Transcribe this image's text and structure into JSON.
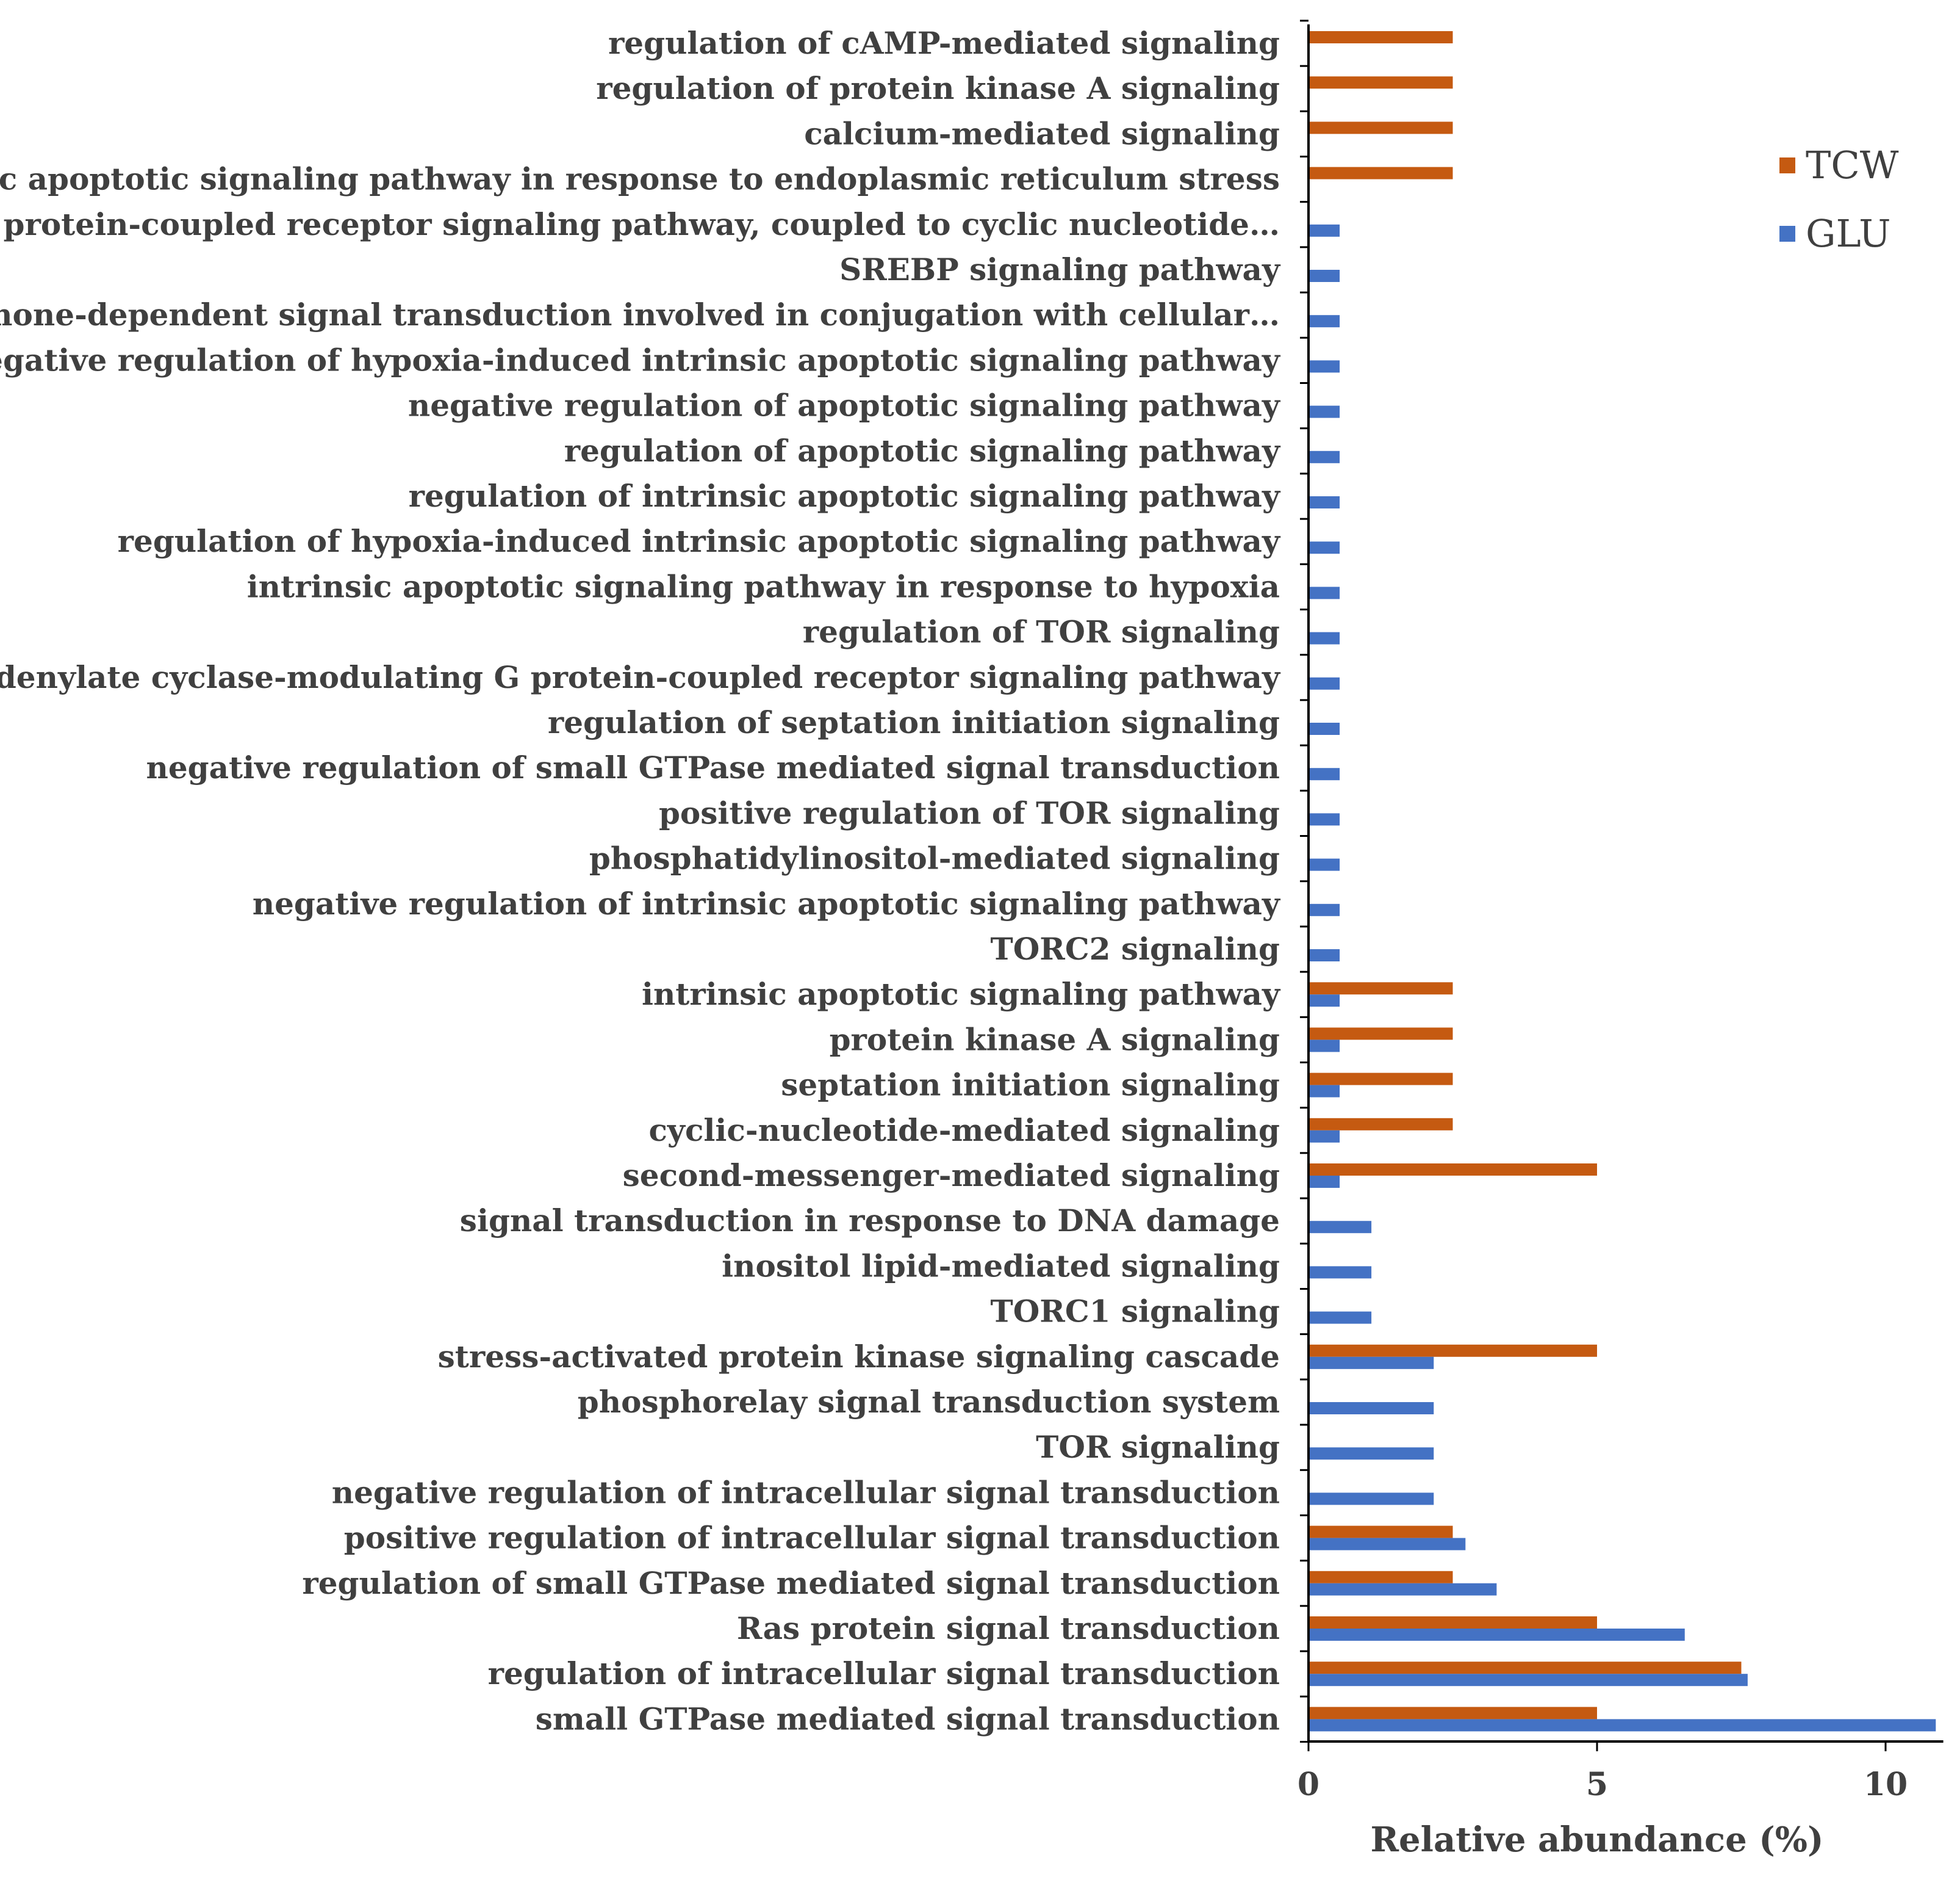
{
  "chart_data": {
    "type": "bar",
    "orientation": "horizontal",
    "title": "",
    "xlabel": "Relative abundance (%)",
    "ylabel": "",
    "xlim": [
      0,
      11
    ],
    "xticks": [
      0,
      5,
      10
    ],
    "grid": false,
    "legend_position": "top-right",
    "categories": [
      "regulation of cAMP-mediated signaling",
      "regulation of protein kinase A signaling",
      "calcium-mediated signaling",
      "intrinsic apoptotic signaling pathway in response to endoplasmic reticulum stress",
      "G protein-coupled receptor signaling pathway, coupled to cyclic nucleotide…",
      "SREBP signaling pathway",
      "pheromone-dependent signal transduction involved in conjugation with cellular…",
      "negative regulation of hypoxia-induced intrinsic apoptotic signaling pathway",
      "negative regulation of apoptotic signaling pathway",
      "regulation of apoptotic signaling pathway",
      "regulation of intrinsic apoptotic signaling pathway",
      "regulation of hypoxia-induced intrinsic apoptotic signaling pathway",
      "intrinsic apoptotic signaling pathway in response to hypoxia",
      "regulation of TOR signaling",
      "adenylate cyclase-modulating G protein-coupled receptor signaling pathway",
      "regulation of septation initiation signaling",
      "negative regulation of small GTPase mediated signal transduction",
      "positive regulation of TOR signaling",
      "phosphatidylinositol-mediated signaling",
      "negative regulation of intrinsic apoptotic signaling pathway",
      "TORC2 signaling",
      "intrinsic apoptotic signaling pathway",
      "protein kinase A signaling",
      "septation initiation signaling",
      "cyclic-nucleotide-mediated signaling",
      "second-messenger-mediated signaling",
      "signal transduction in response to DNA damage",
      "inositol lipid-mediated signaling",
      "TORC1 signaling",
      "stress-activated protein kinase signaling cascade",
      "phosphorelay signal transduction system",
      "TOR signaling",
      "negative regulation of intracellular signal transduction",
      "positive regulation of intracellular signal transduction",
      "regulation of small GTPase mediated signal transduction",
      "Ras protein signal transduction",
      "regulation of intracellular signal transduction",
      "small GTPase mediated signal transduction"
    ],
    "series": [
      {
        "name": "TCW",
        "color": "#C55A11",
        "values": [
          2.5,
          2.5,
          2.5,
          2.5,
          0,
          0,
          0,
          0,
          0,
          0,
          0,
          0,
          0,
          0,
          0,
          0,
          0,
          0,
          0,
          0,
          0,
          2.5,
          2.5,
          2.5,
          2.5,
          5,
          0,
          0,
          0,
          5,
          0,
          0,
          0,
          2.5,
          2.5,
          5,
          7.5,
          5
        ]
      },
      {
        "name": "GLU",
        "color": "#4472C4",
        "values": [
          0,
          0,
          0,
          0,
          0.54,
          0.54,
          0.54,
          0.54,
          0.54,
          0.54,
          0.54,
          0.54,
          0.54,
          0.54,
          0.54,
          0.54,
          0.54,
          0.54,
          0.54,
          0.54,
          0.54,
          0.54,
          0.54,
          0.54,
          0.54,
          0.54,
          1.09,
          1.09,
          1.09,
          2.17,
          2.17,
          2.17,
          2.17,
          2.72,
          3.26,
          6.52,
          7.61,
          10.87
        ]
      }
    ]
  }
}
